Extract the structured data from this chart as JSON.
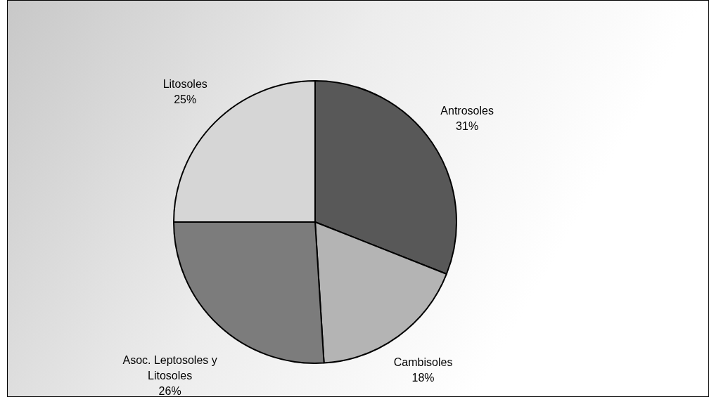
{
  "chart_data": {
    "type": "pie",
    "categories": [
      "Antrosoles",
      "Cambisoles",
      "Asoc. Leptosoles y Litosoles",
      "Litosoles"
    ],
    "values": [
      31,
      18,
      26,
      25
    ],
    "colors": [
      "#585858",
      "#b4b4b4",
      "#7c7c7c",
      "#d6d6d6"
    ],
    "value_labels": [
      "31%",
      "18%",
      "26%",
      "25%"
    ],
    "legend": false
  }
}
